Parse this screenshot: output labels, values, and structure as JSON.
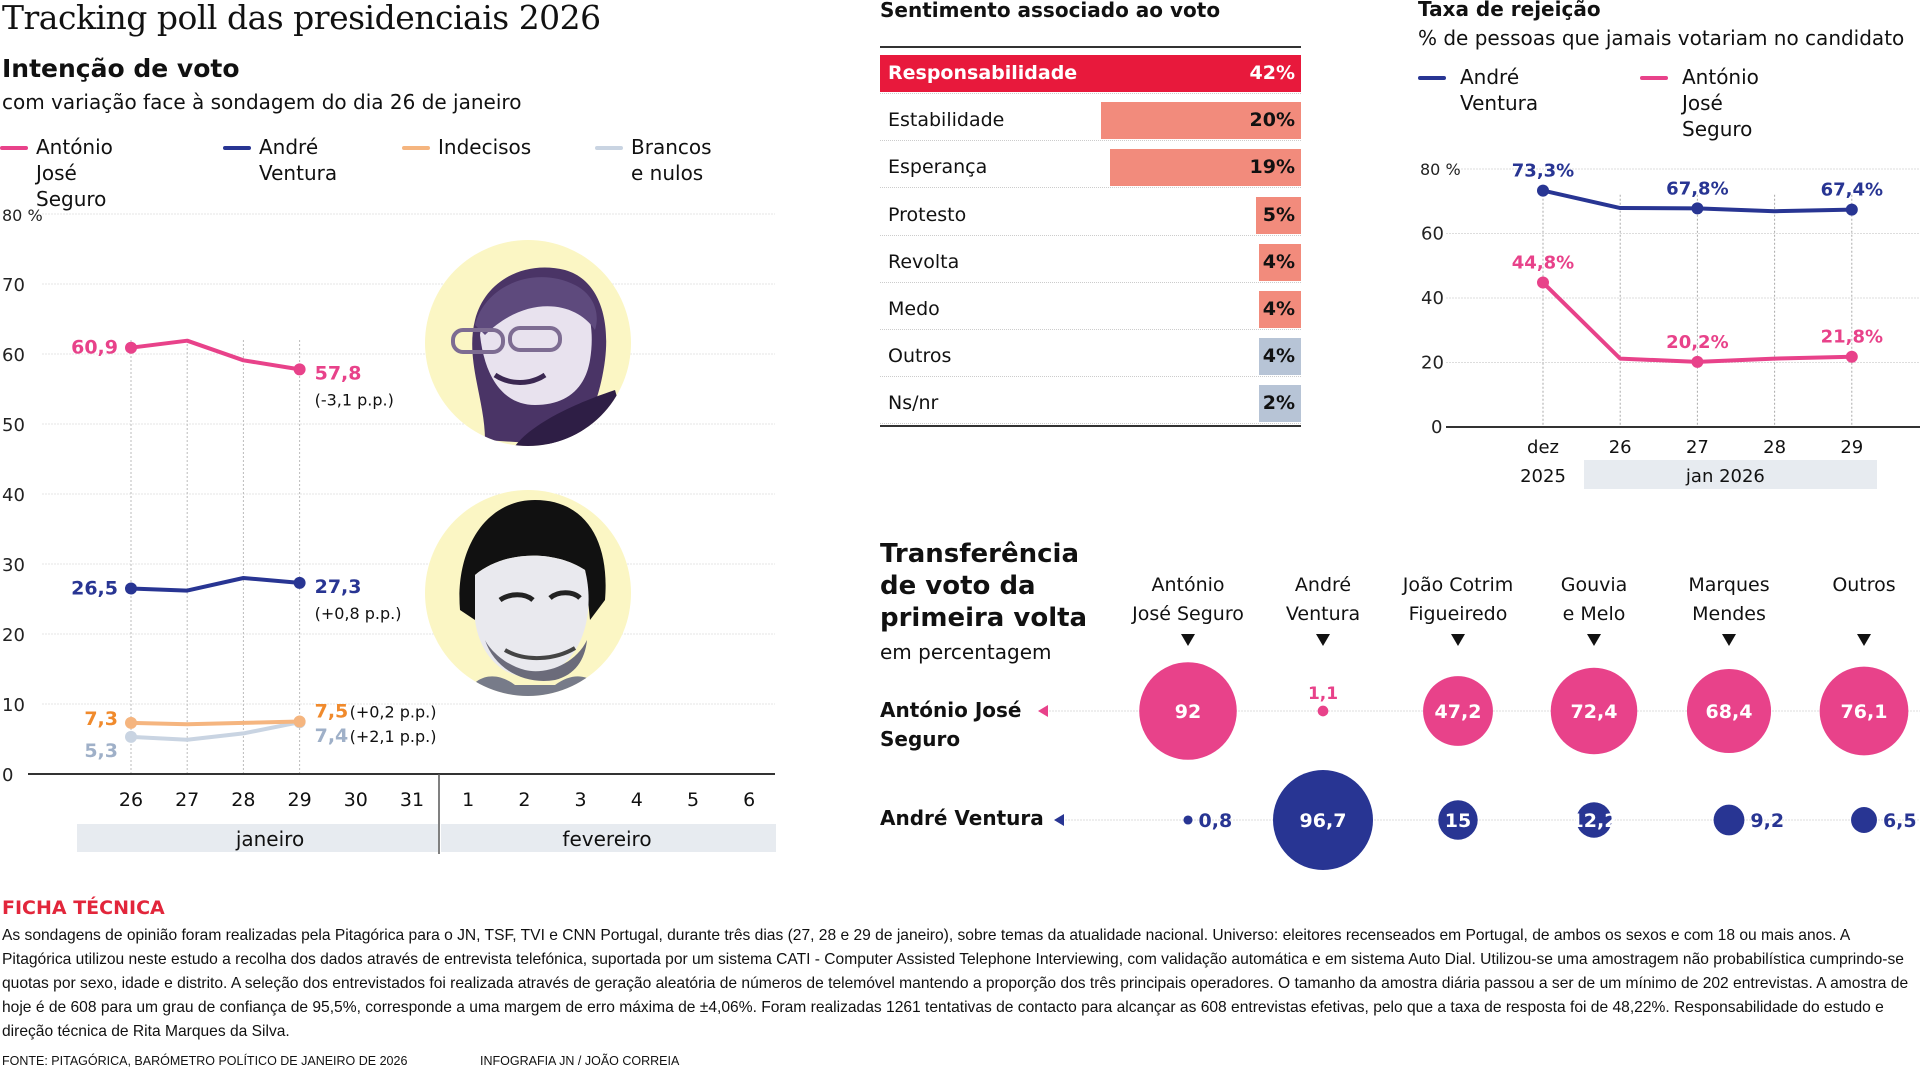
{
  "header": {
    "title": "Tracking poll das presidenciais 2026",
    "subtitle": "Intenção de voto",
    "caption": "com variação face à sondagem do dia 26 de janeiro"
  },
  "colors": {
    "seguro": "#e8428a",
    "ventura": "#283593",
    "indecisos": "#f5b57f",
    "brancos": "#c9d4e2",
    "highlight_bar": "#e8193c",
    "salmon_bar": "#f28b7c",
    "grey_bar": "#b7c4d6",
    "ficha": "#e2263b"
  },
  "portraits": [
    {
      "name": "António José Seguro",
      "icon": "portrait-seguro"
    },
    {
      "name": "André Ventura",
      "icon": "portrait-ventura"
    }
  ],
  "chart_data": [
    {
      "type": "line",
      "title": "Intenção de voto",
      "subtitle": "com variação face à sondagem do dia 26 de janeiro",
      "ylim": [
        0,
        80
      ],
      "yticks": [
        "0",
        "10",
        "20",
        "30",
        "40",
        "50",
        "60",
        "70",
        "80 %"
      ],
      "x": [
        "26",
        "27",
        "28",
        "29",
        "30",
        "31",
        "1",
        "2",
        "3",
        "4",
        "5",
        "6"
      ],
      "month_bands": [
        "janeiro",
        "fevereiro"
      ],
      "grid": true,
      "legend": [
        "António\nJosé Seguro",
        "André\nVentura",
        "Indecisos",
        "Brancos\ne nulos"
      ],
      "legend_position": "top",
      "series": [
        {
          "name": "António José Seguro",
          "values": [
            60.9,
            61.9,
            59.1,
            57.8
          ],
          "start_label": "60,9",
          "end_label": "57,8",
          "change": "(-3,1 p.p.)"
        },
        {
          "name": "André Ventura",
          "values": [
            26.5,
            26.2,
            28.0,
            27.3
          ],
          "start_label": "26,5",
          "end_label": "27,3",
          "change": "(+0,8 p.p.)"
        },
        {
          "name": "Indecisos",
          "values": [
            7.3,
            7.1,
            7.3,
            7.5
          ],
          "start_label": "7,3",
          "end_label": "7,5",
          "change": "(+0,2 p.p.)"
        },
        {
          "name": "Brancos e nulos",
          "values": [
            5.3,
            4.9,
            5.8,
            7.4
          ],
          "start_label": "5,3",
          "end_label": "7,4",
          "change": "(+2,1 p.p.)"
        }
      ]
    },
    {
      "type": "bar",
      "title": "Sentimento associado ao voto",
      "categories": [
        "Responsabilidade",
        "Estabilidade",
        "Esperança",
        "Protesto",
        "Revolta",
        "Medo",
        "Outros",
        "Ns/nr"
      ],
      "values": [
        42,
        20,
        19,
        5,
        4,
        4,
        4,
        2
      ],
      "value_labels": [
        "42%",
        "20%",
        "19%",
        "5%",
        "4%",
        "4%",
        "4%",
        "2%"
      ],
      "styles": [
        "highlight",
        "salmon",
        "salmon",
        "salmon",
        "salmon",
        "salmon",
        "grey",
        "grey"
      ]
    },
    {
      "type": "line",
      "title": "Taxa de rejeição",
      "subtitle": "% de pessoas que jamais votariam no candidato",
      "ylim": [
        0,
        80
      ],
      "yticks": [
        "0",
        "20",
        "40",
        "60",
        "80 %"
      ],
      "x": [
        "dez",
        "26",
        "27",
        "28",
        "29"
      ],
      "x_sub": [
        "2025",
        "jan 2026"
      ],
      "grid": true,
      "legend": [
        "André\nVentura",
        "António José\nSeguro"
      ],
      "legend_position": "top",
      "series": [
        {
          "name": "André Ventura",
          "values": [
            73.3,
            67.9,
            67.8,
            66.9,
            67.4
          ],
          "labels": [
            "73,3%",
            "",
            "67,8%",
            "",
            "67,4%"
          ]
        },
        {
          "name": "António José Seguro",
          "values": [
            44.8,
            21.2,
            20.2,
            21.2,
            21.8
          ],
          "labels": [
            "44,8%",
            "",
            "20,2%",
            "",
            "21,8%"
          ]
        }
      ]
    },
    {
      "type": "scatter",
      "title": "Transferência\nde voto da\nprimeira volta",
      "subtitle": "em percentagem",
      "columns": [
        "António\nJosé Seguro",
        "André\nVentura",
        "João Cotrim\nFigueiredo",
        "Gouvia\ne Melo",
        "Marques\nMendes",
        "Outros"
      ],
      "rows": [
        {
          "name": "António José\nSeguro",
          "values": [
            92,
            1.1,
            47.2,
            72.4,
            68.4,
            76.1
          ],
          "labels": [
            "92",
            "1,1",
            "47,2",
            "72,4",
            "68,4",
            "76,1"
          ]
        },
        {
          "name": "André Ventura",
          "values": [
            0.8,
            96.7,
            15,
            12.2,
            9.2,
            6.5
          ],
          "labels": [
            "0,8",
            "96,7",
            "15",
            "12,2",
            "9,2",
            "6,5"
          ]
        }
      ]
    }
  ],
  "sentimento": {
    "title": "Sentimento associado ao voto"
  },
  "rejeicao": {
    "title": "Taxa de rejeição",
    "subtitle": "% de pessoas que jamais votariam no candidato"
  },
  "transferencia": {
    "title": "Transferência\nde voto da\nprimeira volta",
    "subtitle": "em percentagem"
  },
  "ficha": {
    "title": "FICHA TÉCNICA",
    "text": "As sondagens de opinião foram realizadas pela Pitagórica para o JN, TSF, TVI e CNN Portugal, durante três dias (27, 28 e 29 de janeiro), sobre temas da atualidade nacional. Universo: eleitores recenseados em Portugal, de ambos os sexos e com 18 ou mais anos. A Pitagórica utilizou neste estudo a recolha dos dados através de entrevista telefónica, suportada por um sistema CATI - Computer Assisted Telephone Interviewing, com validação automática e em sistema Auto Dial. Utilizou-se uma amostragem não probabilística cumprindo-se quotas por sexo, idade e distrito. A seleção dos entrevistados foi realizada através de geração aleatória de números de telemóvel mantendo a proporção dos três principais operadores. O tamanho da amostra diária passou a ser de um mínimo de 202 entrevistas. A amostra de hoje é de 608 para um grau de confiança de 95,5%, corresponde a uma margem de erro máxima de ±4,06%. Foram realizadas 1261 tentativas de contacto para alcançar as 608 entrevistas efetivas, pelo que a taxa de resposta foi de 48,22%. Responsabilidade do estudo e direção técnica de Rita Marques da Silva."
  },
  "footer": {
    "source": "FONTE: PITAGÓRICA, BARÓMETRO POLÍTICO DE JANEIRO DE 2026",
    "credit": "INFOGRAFIA JN / JOÃO CORREIA"
  }
}
